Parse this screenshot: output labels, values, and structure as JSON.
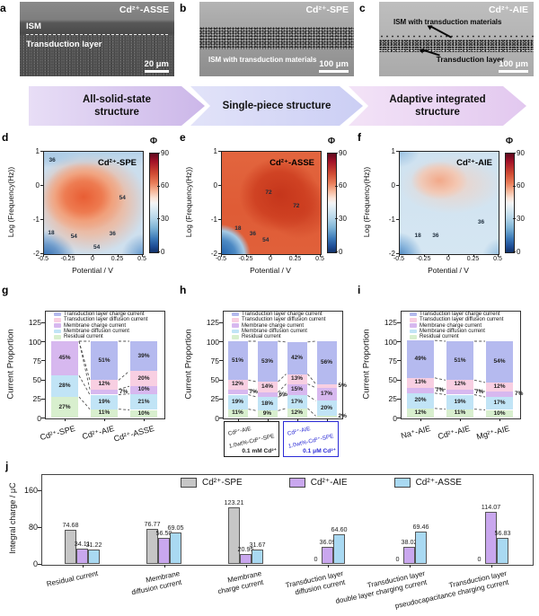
{
  "figure": {
    "micrographs": [
      {
        "letter": "a",
        "title": "Cd²⁺-ASSE",
        "label1": "ISM",
        "label2": "Transduction layer",
        "scale": "20 μm"
      },
      {
        "letter": "b",
        "title": "Cd²⁺-SPE",
        "label1": "ISM with transduction materials",
        "scale": "100 μm"
      },
      {
        "letter": "c",
        "title": "Cd²⁺-AIE",
        "label1": "ISM with transduction materials",
        "label2": "Transduction layer",
        "scale": "100 μm"
      }
    ],
    "flow": [
      {
        "label": "All-solid-state structure"
      },
      {
        "label": "Single-piece structure"
      },
      {
        "label": "Adaptive integrated structure"
      }
    ],
    "colors": {
      "arrow1": "#d9c6ef",
      "arrow2": "#d6d8f7",
      "arrow3": "#eed7f2",
      "trans_charge": "#b5baef",
      "trans_diff": "#f8cfe2",
      "mem_charge": "#d7b8ef",
      "mem_diff": "#c1e4f6",
      "residual": "#d8efce",
      "spe_gray": "#c6c6c6",
      "aie_purple": "#c9a7ee",
      "asse_blue": "#a9d9f2",
      "box2_blue": "#2b2bd6"
    }
  },
  "chart_data": [
    {
      "panel": "d",
      "type": "heatmap",
      "title": "Cd²⁺-SPE",
      "xlabel": "Potential / V",
      "ylabel": "Log (Frequency(Hz))",
      "xticks": [
        "-0.5",
        "-0.25",
        "0",
        "0.25",
        "0.5"
      ],
      "yticks": [
        "1",
        "0",
        "-1",
        "-2"
      ],
      "x_range": [
        -0.5,
        0.5
      ],
      "y_range": [
        -2,
        1
      ],
      "z_range": [
        0,
        90
      ],
      "colorbar_title": "Φ",
      "colorbar_ticks": [
        "90",
        "60",
        "30",
        "0"
      ],
      "contour_labels": [
        {
          "v": "36",
          "x": 5,
          "y": 5
        },
        {
          "v": "54",
          "x": 76,
          "y": 42
        },
        {
          "v": "18",
          "x": 4,
          "y": 76
        },
        {
          "v": "54",
          "x": 27,
          "y": 80
        },
        {
          "v": "54",
          "x": 50,
          "y": 90
        },
        {
          "v": "36",
          "x": 66,
          "y": 77
        }
      ]
    },
    {
      "panel": "e",
      "type": "heatmap",
      "title": "Cd²⁺-ASSE",
      "xlabel": "Potential / V",
      "ylabel": "Log (Frequency(Hz))",
      "xticks": [
        "-0.5",
        "-0.25",
        "0",
        "0.25",
        "0.5"
      ],
      "yticks": [
        "1",
        "0",
        "-1",
        "-2"
      ],
      "x_range": [
        -0.5,
        0.5
      ],
      "y_range": [
        -2,
        1
      ],
      "z_range": [
        0,
        90
      ],
      "colorbar_title": "Φ",
      "colorbar_ticks": [
        "90",
        "60",
        "30",
        "0"
      ],
      "contour_labels": [
        {
          "v": "72",
          "x": 44,
          "y": 37
        },
        {
          "v": "72",
          "x": 72,
          "y": 50
        },
        {
          "v": "18",
          "x": 13,
          "y": 72
        },
        {
          "v": "36",
          "x": 28,
          "y": 77
        },
        {
          "v": "54",
          "x": 41,
          "y": 83
        }
      ]
    },
    {
      "panel": "f",
      "type": "heatmap",
      "title": "Cd²⁺-AIE",
      "xlabel": "Potential / V",
      "ylabel": "Log (Frequency(Hz))",
      "xticks": [
        "-0.5",
        "-0.25",
        "0",
        "0.25",
        "0.5"
      ],
      "yticks": [
        "1",
        "0",
        "-1",
        "-2"
      ],
      "x_range": [
        -0.5,
        0.5
      ],
      "y_range": [
        -2,
        1
      ],
      "z_range": [
        0,
        90
      ],
      "colorbar_title": "Φ",
      "colorbar_ticks": [
        "90",
        "60",
        "30",
        "0"
      ],
      "contour_labels": [
        {
          "v": "18",
          "x": 15,
          "y": 79
        },
        {
          "v": "36",
          "x": 33,
          "y": 79
        },
        {
          "v": "36",
          "x": 79,
          "y": 66
        }
      ]
    },
    {
      "panel": "g",
      "type": "stacked-bar",
      "ylabel": "Current Proportion",
      "yticks": [
        0,
        25,
        50,
        75,
        100,
        125
      ],
      "ymax": 140,
      "legend": [
        {
          "label": "Transduction layer charge current",
          "color": "#b5baef"
        },
        {
          "label": "Transduction layer diffusion current",
          "color": "#f8cfe2"
        },
        {
          "label": "Membrane charge current",
          "color": "#d7b8ef"
        },
        {
          "label": "Membrane diffusion current",
          "color": "#c1e4f6"
        },
        {
          "label": "Residual current",
          "color": "#d8efce"
        }
      ],
      "categories": [
        "Cd²⁺-SPE",
        "Cd²⁺-AIE",
        "Cd²⁺-ASSE"
      ],
      "series": [
        {
          "name": "Residual current",
          "color": "#d8efce",
          "values": [
            27,
            11,
            10
          ]
        },
        {
          "name": "Membrane diffusion current",
          "color": "#c1e4f6",
          "values": [
            28,
            19,
            21
          ]
        },
        {
          "name": "Membrane charge current",
          "color": "#d7b8ef",
          "values": [
            45,
            7,
            10
          ]
        },
        {
          "name": "Transduction layer diffusion current",
          "color": "#f8cfe2",
          "values": [
            0,
            12,
            20
          ]
        },
        {
          "name": "Transduction layer charge current",
          "color": "#b5baef",
          "values": [
            0,
            51,
            39
          ]
        }
      ]
    },
    {
      "panel": "h",
      "type": "stacked-bar",
      "ylabel": "Current Proportion",
      "yticks": [
        0,
        25,
        50,
        75,
        100,
        125
      ],
      "ymax": 140,
      "legend": [
        {
          "label": "Transduction layer charge current",
          "color": "#b5baef"
        },
        {
          "label": "Transduction layer diffusion current",
          "color": "#f8cfe2"
        },
        {
          "label": "Membrane charge current",
          "color": "#d7b8ef"
        },
        {
          "label": "Membrane diffusion current",
          "color": "#c1e4f6"
        },
        {
          "label": "Residual current",
          "color": "#d8efce"
        }
      ],
      "categories": [],
      "category_boxes": [
        {
          "line1": "Cd²⁺-AIE",
          "line2": "1.0wt%-Cd²⁺-SPE",
          "conc": "0.1 mM Cd²⁺",
          "color": "#1a1a1a"
        },
        {
          "line1": "Cd²⁺-AIE",
          "line2": "1.0wt%-Cd²⁺-SPE",
          "conc": "0.1 μM Cd²⁺",
          "color": "#2b2bd6"
        }
      ],
      "series": [
        {
          "name": "Residual current",
          "color": "#d8efce",
          "values": [
            11,
            9,
            12,
            2
          ]
        },
        {
          "name": "Membrane diffusion current",
          "color": "#c1e4f6",
          "values": [
            19,
            18,
            17,
            20
          ]
        },
        {
          "name": "Membrane charge current",
          "color": "#d7b8ef",
          "values": [
            7,
            6,
            15,
            17
          ]
        },
        {
          "name": "Transduction layer diffusion current",
          "color": "#f8cfe2",
          "values": [
            12,
            14,
            13,
            5
          ]
        },
        {
          "name": "Transduction layer charge current",
          "color": "#b5baef",
          "values": [
            51,
            53,
            42,
            56
          ]
        }
      ]
    },
    {
      "panel": "i",
      "type": "stacked-bar",
      "ylabel": "Current Proportion",
      "yticks": [
        0,
        25,
        50,
        75,
        100,
        125
      ],
      "ymax": 140,
      "legend": [
        {
          "label": "Transduction layer charge current",
          "color": "#b5baef"
        },
        {
          "label": "Transduction layer diffusion current",
          "color": "#f8cfe2"
        },
        {
          "label": "Membrane charge current",
          "color": "#d7b8ef"
        },
        {
          "label": "Membrane diffusion current",
          "color": "#c1e4f6"
        },
        {
          "label": "Residual current",
          "color": "#d8efce"
        }
      ],
      "categories": [
        "Na⁺-AIE",
        "Cd²⁺-AIE",
        "Mg²⁺-AIE"
      ],
      "series": [
        {
          "name": "Residual current",
          "color": "#d8efce",
          "values": [
            12,
            11,
            10
          ]
        },
        {
          "name": "Membrane diffusion current",
          "color": "#c1e4f6",
          "values": [
            20,
            19,
            17
          ]
        },
        {
          "name": "Membrane charge current",
          "color": "#d7b8ef",
          "values": [
            7,
            7,
            7
          ]
        },
        {
          "name": "Transduction layer diffusion current",
          "color": "#f8cfe2",
          "values": [
            13,
            12,
            12
          ]
        },
        {
          "name": "Transduction layer charge current",
          "color": "#b5baef",
          "values": [
            49,
            51,
            54
          ]
        }
      ]
    },
    {
      "panel": "j",
      "type": "grouped-bar",
      "ylabel": "Integral charge / μC",
      "yticks": [
        0,
        80,
        160
      ],
      "ymax": 195,
      "categories": [
        "Residual current",
        "Membrane\ndiffusion current",
        "Membrane\ncharge current",
        "Transduction layer\ndiffusion current",
        "Transduction layer\ndouble layer charging current",
        "Transduction layer\npseudocapacitance charging current"
      ],
      "series": [
        {
          "name": "Cd²⁺-SPE",
          "color": "#c6c6c6",
          "values": [
            74.68,
            76.77,
            123.21,
            0,
            0,
            0
          ]
        },
        {
          "name": "Cd²⁺-AIE",
          "color": "#c9a7ee",
          "values": [
            34.11,
            56.5,
            20.95,
            36.09,
            38.02,
            114.07
          ]
        },
        {
          "name": "Cd²⁺-ASSE",
          "color": "#a9d9f2",
          "values": [
            31.22,
            69.05,
            31.67,
            64.6,
            69.46,
            56.83
          ]
        }
      ]
    }
  ]
}
